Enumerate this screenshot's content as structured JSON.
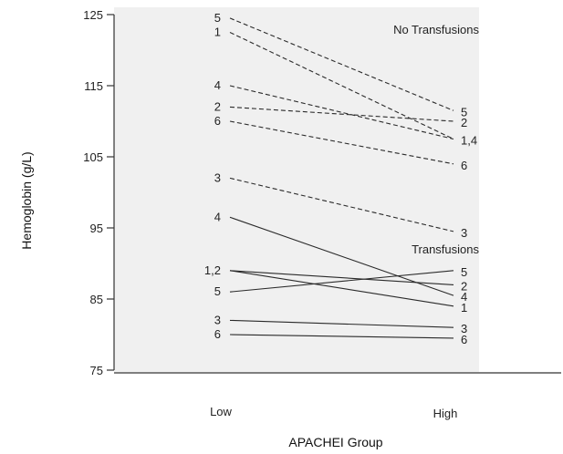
{
  "chart_data": {
    "type": "line",
    "xlabel": "APACHEI  Group",
    "ylabel": "Hemoglobin (g/L)",
    "categories": [
      "Low",
      "High"
    ],
    "ylim": [
      75,
      125
    ],
    "yticks": [
      125,
      115,
      105,
      95,
      85,
      75
    ],
    "grid": false,
    "group_labels": [
      "No Transfusions",
      "Transfusions"
    ],
    "series": [
      {
        "group": "No Transfusions",
        "style": "dashed",
        "low_label": "5",
        "high_label": "5",
        "values": [
          124.5,
          111.5
        ]
      },
      {
        "group": "No Transfusions",
        "style": "dashed",
        "low_label": "1",
        "high_label": "",
        "values": [
          122.5,
          107.5
        ]
      },
      {
        "group": "No Transfusions",
        "style": "dashed",
        "low_label": "4",
        "high_label": "1,4",
        "values": [
          115,
          107.5
        ]
      },
      {
        "group": "No Transfusions",
        "style": "dashed",
        "low_label": "2",
        "high_label": "2",
        "values": [
          112,
          110
        ]
      },
      {
        "group": "No Transfusions",
        "style": "dashed",
        "low_label": "6",
        "high_label": "6",
        "values": [
          110,
          104
        ]
      },
      {
        "group": "No Transfusions",
        "style": "dashed",
        "low_label": "3",
        "high_label": "3",
        "values": [
          102,
          94.5
        ]
      },
      {
        "group": "Transfusions",
        "style": "solid",
        "low_label": "4",
        "high_label": "4",
        "values": [
          96.5,
          85.5
        ]
      },
      {
        "group": "Transfusions",
        "style": "solid",
        "low_label": "1,2",
        "high_label": "1",
        "values": [
          89,
          84
        ]
      },
      {
        "group": "Transfusions",
        "style": "solid",
        "low_label": "",
        "high_label": "2",
        "values": [
          89,
          87
        ]
      },
      {
        "group": "Transfusions",
        "style": "solid",
        "low_label": "5",
        "high_label": "5",
        "values": [
          86,
          89
        ]
      },
      {
        "group": "Transfusions",
        "style": "solid",
        "low_label": "3",
        "high_label": "3",
        "values": [
          82,
          81
        ]
      },
      {
        "group": "Transfusions",
        "style": "solid",
        "low_label": "6",
        "high_label": "6",
        "values": [
          80,
          79.5
        ]
      }
    ]
  }
}
